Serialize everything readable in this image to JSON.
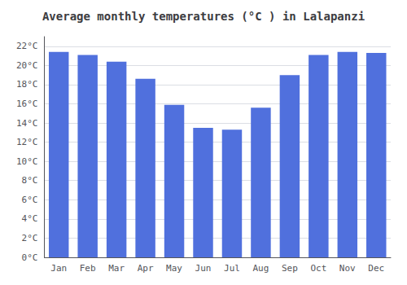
{
  "chart_data": {
    "type": "bar",
    "title": "Average monthly temperatures (°C ) in Lalapanzi",
    "categories": [
      "Jan",
      "Feb",
      "Mar",
      "Apr",
      "May",
      "Jun",
      "Jul",
      "Aug",
      "Sep",
      "Oct",
      "Nov",
      "Dec"
    ],
    "values": [
      21.4,
      21.1,
      20.4,
      18.6,
      15.9,
      13.5,
      13.3,
      15.6,
      19.0,
      21.1,
      21.4,
      21.3
    ],
    "ylim": [
      0,
      23
    ],
    "yticks": [
      {
        "value": 0,
        "label": "0°C"
      },
      {
        "value": 2,
        "label": "2°C"
      },
      {
        "value": 4,
        "label": "4°C"
      },
      {
        "value": 6,
        "label": "6°C"
      },
      {
        "value": 8,
        "label": "8°C"
      },
      {
        "value": 10,
        "label": "10°C"
      },
      {
        "value": 12,
        "label": "12°C"
      },
      {
        "value": 14,
        "label": "14°C"
      },
      {
        "value": 16,
        "label": "16°C"
      },
      {
        "value": 18,
        "label": "18°C"
      },
      {
        "value": 20,
        "label": "20°C"
      },
      {
        "value": 22,
        "label": "22°C"
      }
    ],
    "grid": true
  }
}
